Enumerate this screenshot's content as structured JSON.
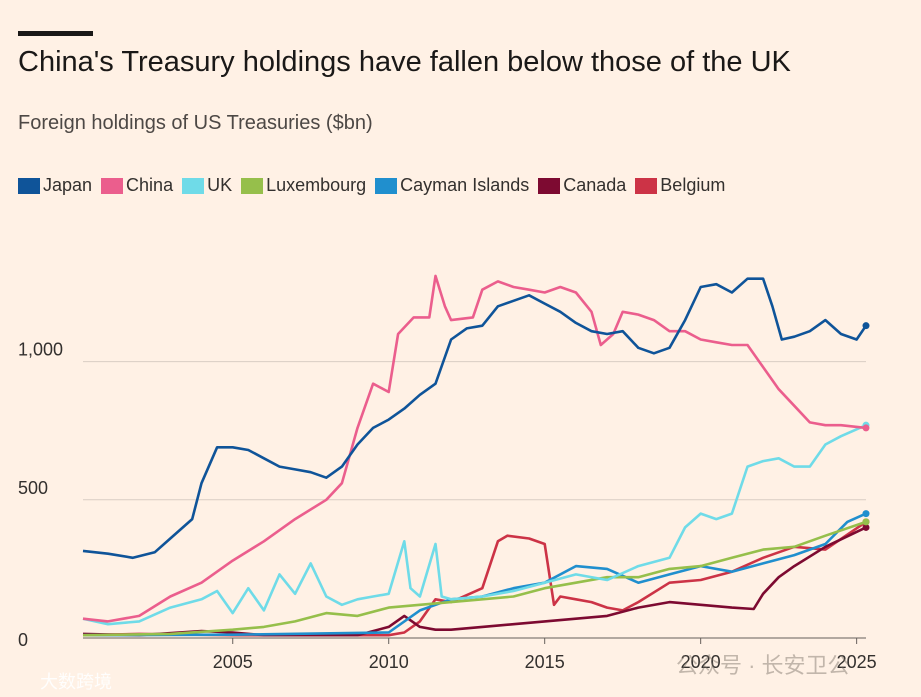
{
  "chart_data": {
    "type": "line",
    "title": "China's Treasury holdings have fallen below those of the UK",
    "subtitle": "Foreign holdings of US Treasuries ($bn)",
    "xlim": [
      2000.2,
      2025.3
    ],
    "ylim": [
      0,
      1350
    ],
    "xticks": [
      2005,
      2010,
      2015,
      2020,
      2025
    ],
    "yticks": [
      {
        "v": 0,
        "label": "0"
      },
      {
        "v": 500,
        "label": "500"
      },
      {
        "v": 1000,
        "label": "1,000"
      }
    ],
    "grid": true,
    "legend": "top",
    "series": [
      {
        "name": "Japan",
        "color": "#0f5499",
        "x": [
          2000.2,
          2001,
          2001.8,
          2002.5,
          2003,
          2003.7,
          2004,
          2004.5,
          2005,
          2005.5,
          2006,
          2006.5,
          2007,
          2007.5,
          2008,
          2008.5,
          2009,
          2009.5,
          2010,
          2010.5,
          2011,
          2011.5,
          2012,
          2012.5,
          2013,
          2013.5,
          2014,
          2014.5,
          2015,
          2015.5,
          2016,
          2016.5,
          2017,
          2017.5,
          2018,
          2018.5,
          2019,
          2019.5,
          2020,
          2020.5,
          2021,
          2021.5,
          2022,
          2022.3,
          2022.6,
          2023,
          2023.5,
          2024,
          2024.5,
          2025,
          2025.3
        ],
        "y": [
          315,
          305,
          290,
          310,
          360,
          430,
          560,
          690,
          690,
          680,
          650,
          620,
          610,
          600,
          580,
          620,
          700,
          760,
          790,
          830,
          880,
          920,
          1080,
          1120,
          1130,
          1200,
          1220,
          1240,
          1210,
          1180,
          1140,
          1110,
          1100,
          1110,
          1050,
          1030,
          1050,
          1150,
          1270,
          1280,
          1250,
          1300,
          1300,
          1200,
          1080,
          1090,
          1110,
          1150,
          1100,
          1080,
          1130
        ]
      },
      {
        "name": "China",
        "color": "#eb5e8d",
        "x": [
          2000.2,
          2001,
          2002,
          2003,
          2004,
          2005,
          2006,
          2007,
          2008,
          2008.5,
          2009,
          2009.5,
          2010,
          2010.3,
          2010.8,
          2011.3,
          2011.5,
          2011.8,
          2012,
          2012.7,
          2013,
          2013.5,
          2014,
          2014.5,
          2015,
          2015.5,
          2016,
          2016.5,
          2016.8,
          2017.2,
          2017.5,
          2018,
          2018.5,
          2019,
          2019.5,
          2020,
          2020.5,
          2021,
          2021.5,
          2022,
          2022.5,
          2023,
          2023.5,
          2024,
          2024.5,
          2025.3
        ],
        "y": [
          70,
          60,
          80,
          150,
          200,
          280,
          350,
          430,
          500,
          560,
          760,
          920,
          890,
          1100,
          1160,
          1160,
          1310,
          1200,
          1150,
          1160,
          1260,
          1290,
          1270,
          1260,
          1250,
          1270,
          1250,
          1180,
          1060,
          1100,
          1180,
          1170,
          1150,
          1110,
          1110,
          1080,
          1070,
          1060,
          1060,
          980,
          900,
          840,
          780,
          770,
          770,
          760
        ]
      },
      {
        "name": "UK",
        "color": "#6fdbe8",
        "x": [
          2000.2,
          2001,
          2002,
          2003,
          2004,
          2004.5,
          2005,
          2005.5,
          2006,
          2006.5,
          2007,
          2007.5,
          2008,
          2008.5,
          2009,
          2009.5,
          2010,
          2010.5,
          2010.7,
          2011,
          2011.5,
          2011.7,
          2012,
          2013,
          2014,
          2015,
          2016,
          2017,
          2018,
          2019,
          2019.5,
          2020,
          2020.5,
          2021,
          2021.5,
          2022,
          2022.5,
          2023,
          2023.5,
          2024,
          2024.5,
          2025.3
        ],
        "y": [
          70,
          50,
          60,
          110,
          140,
          170,
          90,
          180,
          100,
          230,
          160,
          270,
          150,
          120,
          140,
          150,
          160,
          350,
          180,
          150,
          340,
          150,
          140,
          150,
          170,
          200,
          230,
          210,
          260,
          290,
          400,
          450,
          430,
          450,
          620,
          640,
          650,
          620,
          620,
          700,
          730,
          770
        ]
      },
      {
        "name": "Luxembourg",
        "color": "#96bf4b",
        "x": [
          2000.2,
          2003,
          2005,
          2006,
          2007,
          2008,
          2009,
          2010,
          2011,
          2012,
          2013,
          2014,
          2015,
          2016,
          2017,
          2018,
          2019,
          2020,
          2021,
          2022,
          2023,
          2024,
          2025.3
        ],
        "y": [
          10,
          15,
          30,
          40,
          60,
          90,
          80,
          110,
          120,
          130,
          140,
          150,
          180,
          200,
          220,
          220,
          250,
          260,
          290,
          320,
          330,
          370,
          420
        ]
      },
      {
        "name": "Cayman Islands",
        "color": "#208fce",
        "x": [
          2000.2,
          2005,
          2010,
          2011,
          2012,
          2013,
          2014,
          2015,
          2016,
          2017,
          2018,
          2019,
          2020,
          2021,
          2022,
          2023,
          2024,
          2024.7,
          2025.3
        ],
        "y": [
          10,
          12,
          20,
          100,
          140,
          150,
          180,
          200,
          260,
          250,
          200,
          230,
          260,
          240,
          270,
          300,
          340,
          420,
          450
        ]
      },
      {
        "name": "Canada",
        "color": "#7d0a31",
        "x": [
          2000.2,
          2002,
          2004,
          2005,
          2006,
          2008,
          2009,
          2010,
          2010.5,
          2011,
          2011.5,
          2012,
          2013,
          2014,
          2015,
          2016,
          2017,
          2018,
          2019,
          2020,
          2021,
          2021.7,
          2022,
          2022.5,
          2023,
          2024,
          2025.3
        ],
        "y": [
          15,
          10,
          25,
          20,
          10,
          10,
          10,
          40,
          80,
          40,
          30,
          30,
          40,
          50,
          60,
          70,
          80,
          110,
          130,
          120,
          110,
          105,
          160,
          220,
          260,
          330,
          400
        ]
      },
      {
        "name": "Belgium",
        "color": "#cc3346",
        "x": [
          2000.2,
          2002,
          2005,
          2010,
          2010.5,
          2011,
          2011.5,
          2012,
          2013,
          2013.5,
          2013.8,
          2014.5,
          2015,
          2015.3,
          2015.5,
          2016,
          2016.5,
          2017,
          2017.5,
          2018,
          2019,
          2020,
          2021,
          2022,
          2023,
          2024,
          2025.3
        ],
        "y": [
          10,
          15,
          10,
          10,
          20,
          60,
          140,
          130,
          180,
          350,
          370,
          360,
          340,
          120,
          150,
          140,
          130,
          110,
          100,
          130,
          200,
          210,
          240,
          290,
          330,
          320,
          420
        ]
      }
    ]
  },
  "watermarks": [
    "公众号 · 长安卫公",
    "大数跨境"
  ]
}
